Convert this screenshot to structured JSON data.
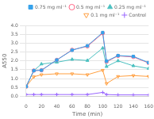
{
  "chart_data": {
    "type": "line",
    "xlabel": "Time (min)",
    "ylabel": "A550",
    "xlim": [
      0,
      160
    ],
    "ylim": [
      0,
      4
    ],
    "xticks": [
      0,
      20,
      40,
      60,
      80,
      100,
      120,
      140,
      160
    ],
    "yticks": [
      {
        "value": 0,
        "label": "0.0"
      },
      0.5,
      {
        "value": 1,
        "label": "1.0"
      },
      1.5,
      {
        "value": 2,
        "label": "2.0"
      },
      2.5,
      {
        "value": 3,
        "label": "3.0"
      },
      3.5,
      {
        "value": 4,
        "label": "4.0"
      }
    ],
    "grid": "y",
    "legend": "upper right",
    "series": [
      {
        "name": "0.75 mg ml⁻¹",
        "marker": "square",
        "line_style": "solid",
        "x": [
          0,
          10,
          20,
          40,
          60,
          80,
          100,
          105,
          120,
          140,
          160
        ],
        "values": [
          0.55,
          1.45,
          1.47,
          2.05,
          2.6,
          2.85,
          3.6,
          1.98,
          2.3,
          2.25,
          1.9
        ]
      },
      {
        "name": "0.5 mg ml⁻¹",
        "marker": "circle-open",
        "line_style": "solid",
        "x": [
          0,
          10,
          20,
          40,
          60,
          80,
          100,
          105,
          120,
          140,
          160
        ],
        "values": [
          0.55,
          1.45,
          1.47,
          2.05,
          2.62,
          2.82,
          3.56,
          1.95,
          2.28,
          2.22,
          1.88
        ]
      },
      {
        "name": "0.25 mg ml⁻¹",
        "marker": "triangle-up",
        "line_style": "solid",
        "x": [
          0,
          10,
          20,
          40,
          60,
          80,
          100,
          105,
          120,
          140,
          160
        ],
        "values": [
          0.55,
          1.45,
          1.82,
          1.92,
          2.08,
          2.02,
          2.72,
          1.68,
          2.0,
          1.72,
          1.57
        ]
      },
      {
        "name": "0.1 mg ml⁻¹",
        "marker": "triangle-down-open",
        "line_style": "solid",
        "x": [
          0,
          10,
          20,
          40,
          60,
          80,
          100,
          105,
          120,
          140,
          160
        ],
        "values": [
          0.55,
          1.1,
          1.22,
          1.27,
          1.27,
          1.22,
          1.47,
          0.72,
          1.12,
          1.17,
          1.12
        ]
      },
      {
        "name": "Control",
        "marker": "plus",
        "line_style": "solid",
        "x": [
          0,
          10,
          20,
          40,
          60,
          80,
          100,
          105,
          120,
          140,
          160
        ],
        "values": [
          0.1,
          0.1,
          0.1,
          0.1,
          0.1,
          0.1,
          0.22,
          0.1,
          0.08,
          0.08,
          0.08
        ]
      }
    ]
  }
}
